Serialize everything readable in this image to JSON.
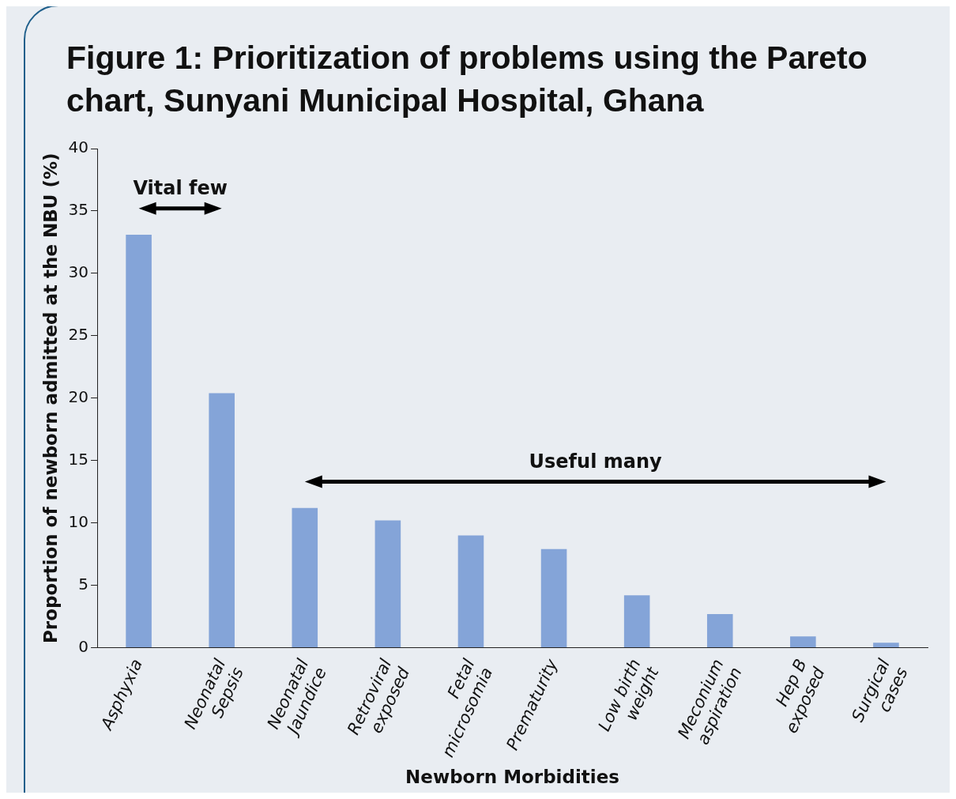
{
  "chart_data": {
    "type": "bar",
    "title": "Figure 1: Prioritization of problems using the Pareto chart, Sunyani Municipal Hospital, Ghana",
    "xlabel": "Newborn Morbidities",
    "ylabel": "Proportion of newborn admitted at the NBU (%)",
    "categories": [
      "Asphyxia",
      "Neonatal Sepsis",
      "Neonatal Jaundice",
      "Retroviral exposed",
      "Fetal microsomia",
      "Prematurity",
      "Low birth weight",
      "Meconium aspiration",
      "Hep B exposed",
      "Surgical cases"
    ],
    "values": [
      33.1,
      20.4,
      11.2,
      10.2,
      9.0,
      7.9,
      4.2,
      2.7,
      0.9,
      0.4
    ],
    "color": "#84a4d8",
    "ylim": [
      0,
      40
    ],
    "yticks": [
      0,
      5,
      10,
      15,
      20,
      25,
      30,
      35,
      40
    ],
    "grid": false,
    "legend": false,
    "annotations": [
      "Vital few",
      "Useful many"
    ]
  }
}
